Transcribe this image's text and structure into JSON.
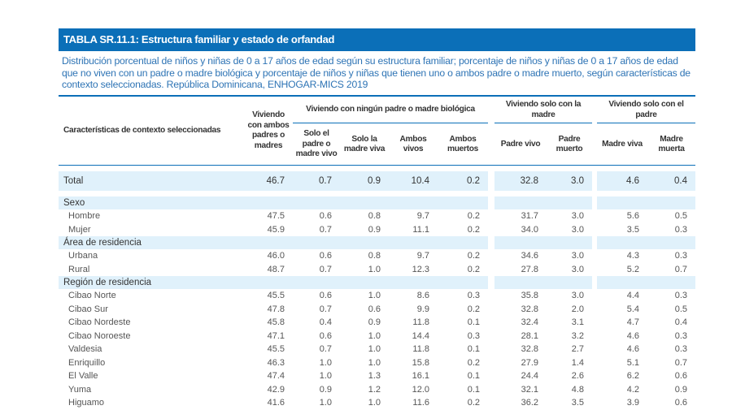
{
  "title": "TABLA SR.11.1: Estructura familiar y estado de orfandad",
  "subtitle": "Distribución porcentual de niños y niñas de 0 a 17 años de edad según su estructura familiar; porcentaje de niños y niñas de 0 a 17 años de edad que no viven con un padre o madre biológica y porcentaje de niños y niñas que tienen uno o ambos padre o madre muerto, según características de contexto seleccionadas. República Dominicana, ENHOGAR-MICS 2019",
  "header": {
    "row_label": "Características de contexto seleccionadas",
    "col_both": "Viviendo con ambos padres o madres",
    "group_none": "Viviendo con ningún padre o madre biológica",
    "group_mother": "Viviendo solo con la madre",
    "group_father": "Viviendo solo con el padre",
    "sub": [
      "Solo el padre o madre vivo",
      "Solo la madre viva",
      "Ambos vivos",
      "Ambos muertos",
      "Padre vivo",
      "Padre muerto",
      "Madre viva",
      "Madre muerta"
    ]
  },
  "total": {
    "label": "Total",
    "values": [
      "46.7",
      "0.7",
      "0.9",
      "10.4",
      "0.2",
      "32.8",
      "3.0",
      "4.6",
      "0.4"
    ]
  },
  "sections": [
    {
      "label": "Sexo",
      "rows": [
        {
          "label": "Hombre",
          "values": [
            "47.5",
            "0.6",
            "0.8",
            "9.7",
            "0.2",
            "31.7",
            "3.0",
            "5.6",
            "0.5"
          ]
        },
        {
          "label": "Mujer",
          "values": [
            "45.9",
            "0.7",
            "0.9",
            "11.1",
            "0.2",
            "34.0",
            "3.0",
            "3.5",
            "0.3"
          ]
        }
      ]
    },
    {
      "label": "Área de residencia",
      "rows": [
        {
          "label": "Urbana",
          "values": [
            "46.0",
            "0.6",
            "0.8",
            "9.7",
            "0.2",
            "34.6",
            "3.0",
            "4.3",
            "0.3"
          ]
        },
        {
          "label": "Rural",
          "values": [
            "48.7",
            "0.7",
            "1.0",
            "12.3",
            "0.2",
            "27.8",
            "3.0",
            "5.2",
            "0.7"
          ]
        }
      ]
    },
    {
      "label": "Región de residencia",
      "rows": [
        {
          "label": "Cibao Norte",
          "values": [
            "45.5",
            "0.6",
            "1.0",
            "8.6",
            "0.3",
            "35.8",
            "3.0",
            "4.4",
            "0.3"
          ]
        },
        {
          "label": "Cibao Sur",
          "values": [
            "47.8",
            "0.7",
            "0.6",
            "9.9",
            "0.2",
            "32.8",
            "2.0",
            "5.4",
            "0.5"
          ]
        },
        {
          "label": "Cibao Nordeste",
          "values": [
            "45.8",
            "0.4",
            "0.9",
            "11.8",
            "0.1",
            "32.4",
            "3.1",
            "4.7",
            "0.4"
          ]
        },
        {
          "label": "Cibao Noroeste",
          "values": [
            "47.1",
            "0.6",
            "1.0",
            "14.4",
            "0.3",
            "28.1",
            "3.2",
            "4.6",
            "0.3"
          ]
        },
        {
          "label": "Valdesia",
          "values": [
            "45.5",
            "0.7",
            "1.0",
            "11.8",
            "0.1",
            "32.8",
            "2.7",
            "4.6",
            "0.3"
          ]
        },
        {
          "label": "Enriquillo",
          "values": [
            "46.3",
            "1.0",
            "1.0",
            "15.8",
            "0.2",
            "27.9",
            "1.4",
            "5.1",
            "0.7"
          ]
        },
        {
          "label": "El Valle",
          "values": [
            "47.4",
            "1.0",
            "1.3",
            "16.1",
            "0.1",
            "24.4",
            "2.6",
            "6.2",
            "0.6"
          ]
        },
        {
          "label": "Yuma",
          "values": [
            "42.9",
            "0.9",
            "1.2",
            "12.0",
            "0.1",
            "32.1",
            "4.8",
            "4.2",
            "0.9"
          ]
        },
        {
          "label": "Higuamo",
          "values": [
            "41.6",
            "1.0",
            "1.0",
            "11.6",
            "0.2",
            "36.2",
            "3.5",
            "3.9",
            "0.6"
          ]
        }
      ]
    }
  ]
}
